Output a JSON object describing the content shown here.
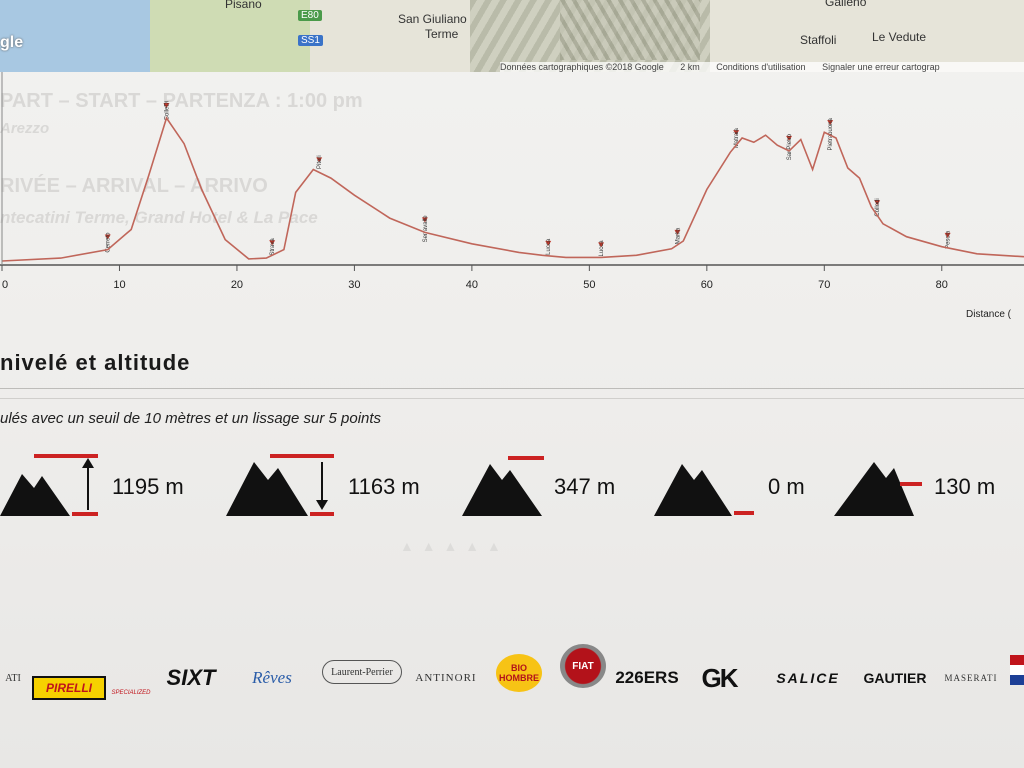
{
  "map": {
    "places": [
      "Pisano",
      "San Giuliano",
      "Terme",
      "Staffoli",
      "Le Vedute",
      "Galleno"
    ],
    "road_badges": [
      "E80",
      "SS1"
    ],
    "logo": "gle",
    "footer": [
      "Données cartographiques ©2018 Google",
      "2 km",
      "Conditions d'utilisation",
      "Signaler une erreur cartograp"
    ]
  },
  "ghost_text": {
    "start": "PART – START – PARTENZA : 1:00 pm",
    "start_place": "Arezzo",
    "arrive": "RIVÉE – ARRIVAL – ARRIVO",
    "arrive_place": "ntecatini Terme, Grand Hotel & La Pace"
  },
  "chart_data": {
    "type": "line",
    "xlabel": "Distance (",
    "xlim": [
      0,
      87
    ],
    "x_ticks": [
      0,
      10,
      20,
      30,
      40,
      50,
      60,
      70,
      80
    ],
    "ylim": [
      0,
      1000
    ],
    "grid": false,
    "colors": {
      "line": "#c0665a",
      "marker": "#c0392b"
    },
    "x": [
      0,
      5,
      9,
      11,
      12.5,
      14,
      15.5,
      17,
      19,
      21,
      22.5,
      24,
      25,
      26.5,
      28,
      30,
      33,
      36,
      40,
      44,
      46,
      48,
      51,
      54,
      57,
      58,
      60,
      62,
      63,
      64,
      65,
      66,
      67,
      68,
      69,
      70,
      71,
      72,
      73,
      74,
      75,
      77,
      80,
      83,
      87
    ],
    "y": [
      0,
      20,
      80,
      220,
      600,
      1000,
      820,
      500,
      150,
      15,
      20,
      80,
      480,
      640,
      580,
      460,
      300,
      200,
      120,
      60,
      40,
      25,
      25,
      40,
      85,
      140,
      500,
      760,
      860,
      830,
      880,
      810,
      770,
      850,
      640,
      900,
      860,
      650,
      580,
      380,
      260,
      170,
      100,
      50,
      30
    ],
    "markers": [
      {
        "label": "Cerreto",
        "x": 9
      },
      {
        "label": "ColleDi",
        "x": 14
      },
      {
        "label": "Strava",
        "x": 23
      },
      {
        "label": "Piteri",
        "x": 27
      },
      {
        "label": "Serravalle",
        "x": 36
      },
      {
        "label": "Lucca",
        "x": 46.5
      },
      {
        "label": "Lucca",
        "x": 51
      },
      {
        "label": "Marlia",
        "x": 57.5
      },
      {
        "label": "Matraia",
        "x": 62.5
      },
      {
        "label": "SanPietro",
        "x": 67
      },
      {
        "label": "Pietrabuona",
        "x": 70.5
      },
      {
        "label": "Collodi",
        "x": 74.5
      },
      {
        "label": "Pescia",
        "x": 80.5
      }
    ]
  },
  "section": {
    "title": "nivelé et altitude",
    "subtitle": "ulés avec un seuil de 10 mètres et un lissage sur 5 points"
  },
  "stats": [
    {
      "name": "ascent",
      "value": "1195 m"
    },
    {
      "name": "descent",
      "value": "1163 m"
    },
    {
      "name": "max-altitude",
      "value": "347 m"
    },
    {
      "name": "min-altitude",
      "value": "0 m"
    },
    {
      "name": "mean-altitude",
      "value": "130 m"
    }
  ],
  "sponsors": [
    "ATI",
    "PIRELLI",
    "SPECIALIZED",
    "SIXT",
    "Rêves",
    "Laurent-Perrier",
    "ANTINORI",
    "BIO HOMBRE",
    "FIAT",
    "226ERS",
    "GK",
    "SALICE",
    "GAUTIER",
    "MASERATI"
  ]
}
